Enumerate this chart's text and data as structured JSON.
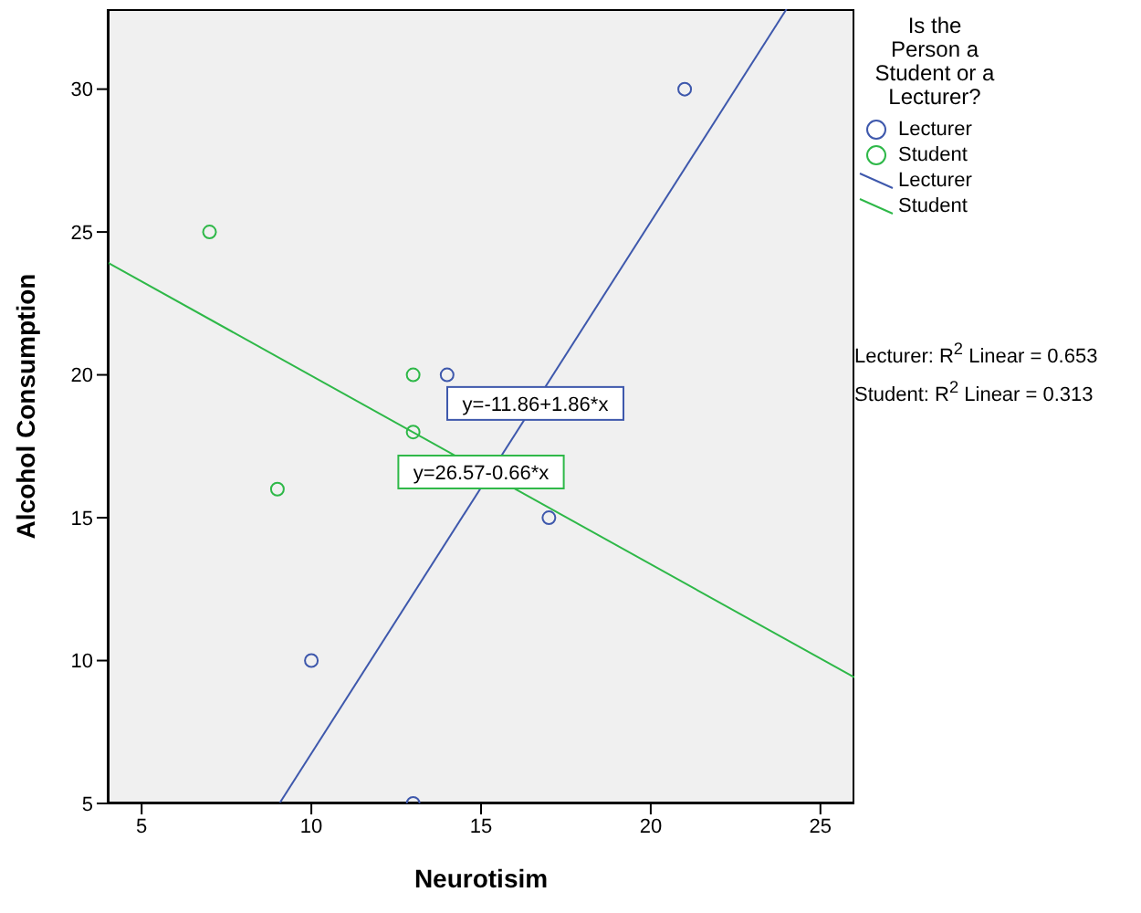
{
  "chart_data": {
    "type": "scatter",
    "xlabel": "Neurotisim",
    "ylabel": "Alcohol Consumption",
    "legend_title": "Is the Person a Student or a Lecturer?",
    "legend": "right",
    "xlim": [
      4,
      26
    ],
    "xticks": [
      5,
      10,
      15,
      20,
      25
    ],
    "ylim": [
      5,
      32.8
    ],
    "yticks": [
      5,
      10,
      15,
      20,
      25,
      30
    ],
    "series": [
      {
        "name": "Lecturer",
        "marker": "circle",
        "color": "#3e58ac",
        "x": [
          10,
          13,
          14,
          17,
          21
        ],
        "values": [
          10,
          5,
          20,
          15,
          30
        ]
      },
      {
        "name": "Student",
        "marker": "circle",
        "color": "#2eb848",
        "x": [
          7,
          9,
          13,
          13
        ],
        "values": [
          25,
          16,
          20,
          18
        ]
      },
      {
        "name": "Lecturer",
        "type": "line",
        "marker": "none",
        "color": "#3e58ac",
        "x": [
          9.06,
          24.0
        ],
        "values": [
          5,
          32.8
        ]
      },
      {
        "name": "Student",
        "type": "line",
        "marker": "none",
        "color": "#2eb848",
        "x": [
          4,
          26
        ],
        "values": [
          23.93,
          9.41
        ]
      }
    ],
    "annotations": [
      {
        "text": "y=-11.86+1.86*x",
        "x": 16.6,
        "y": 19.0
      },
      {
        "text": "y=26.57-0.66*x",
        "x": 15.0,
        "y": 16.6
      },
      "Lecturer: R$^{2}$ Linear = 0.653",
      "Student: R$^{2}$ Linear = 0.313"
    ]
  }
}
